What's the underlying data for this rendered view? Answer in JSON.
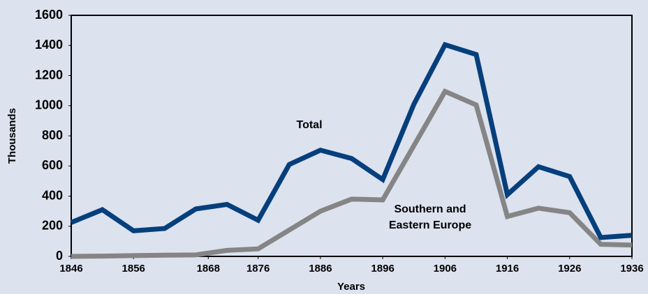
{
  "chart_data": {
    "type": "line",
    "x": [
      1846,
      1851,
      1856,
      1861,
      1866,
      1871,
      1876,
      1881,
      1886,
      1891,
      1896,
      1901,
      1906,
      1911,
      1916,
      1921,
      1926,
      1931,
      1936
    ],
    "series": [
      {
        "name": "Total",
        "color": "#053f7c",
        "values": [
          225,
          310,
          170,
          185,
          315,
          345,
          240,
          610,
          705,
          650,
          510,
          1010,
          1405,
          1340,
          410,
          595,
          530,
          125,
          140
        ]
      },
      {
        "name": "Southern and Eastern Europe",
        "color": "#858585",
        "values": [
          0,
          2,
          5,
          8,
          10,
          40,
          50,
          175,
          300,
          380,
          375,
          735,
          1095,
          1005,
          265,
          320,
          290,
          80,
          75
        ]
      }
    ],
    "annotations": [
      [
        "Total"
      ],
      [
        "Southern and",
        "Eastern Europe"
      ]
    ],
    "xlabel": "Years",
    "ylabel": "Thousands",
    "xlim": [
      1846,
      1936
    ],
    "ylim": [
      0,
      1600
    ],
    "xticks": [
      1846,
      1856,
      1868,
      1876,
      1886,
      1896,
      1906,
      1916,
      1926,
      1936
    ],
    "yticks": [
      0,
      200,
      400,
      600,
      800,
      1000,
      1200,
      1400,
      1600
    ]
  }
}
